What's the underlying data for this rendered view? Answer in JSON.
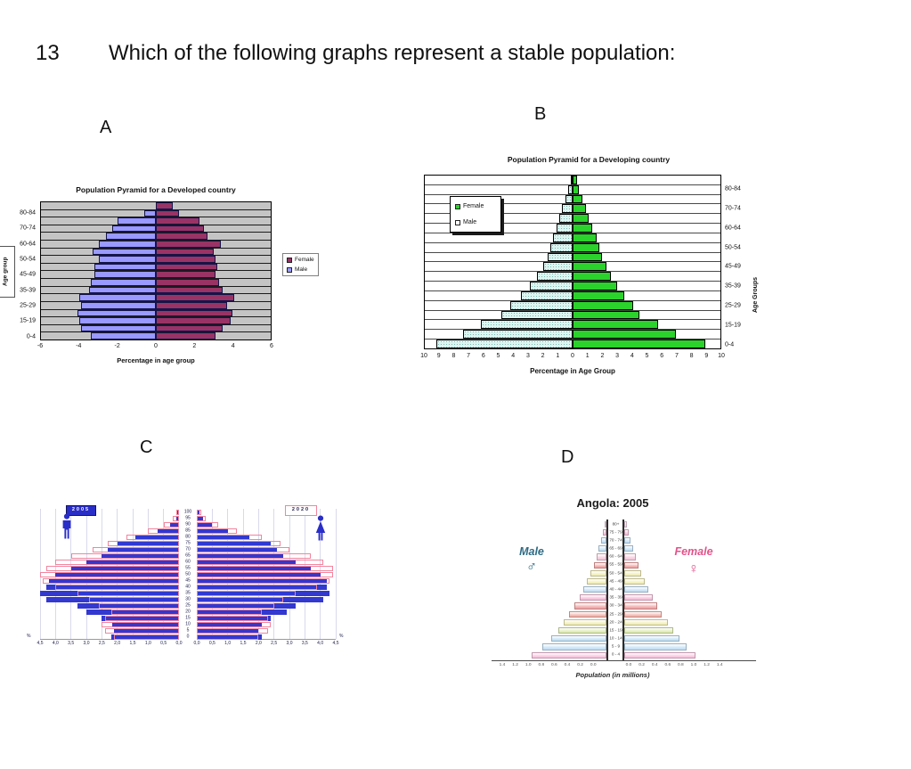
{
  "question": {
    "number": "13",
    "text": "Which of the following graphs represent a stable population:"
  },
  "option_labels": [
    "A",
    "B",
    "C",
    "D"
  ],
  "chart_data": [
    {
      "id": "A",
      "type": "bar",
      "subtype": "population-pyramid",
      "title": "Population Pyramid for a Developed country",
      "xlabel": "Percentage in age group",
      "ylabel": "Age group",
      "legend": [
        {
          "label": "Female",
          "color": "#993366"
        },
        {
          "label": "Male",
          "color": "#9999FF"
        }
      ],
      "x_ticks": [
        "-6",
        "-4",
        "-2",
        "0",
        "2",
        "4",
        "6"
      ],
      "age_labels": [
        "80-84",
        "70-74",
        "60-64",
        "50-54",
        "45-49",
        "35-39",
        "25-29",
        "15-19",
        "0-4"
      ],
      "xlim": 6,
      "rows_order": "top-to-bottom",
      "series": [
        {
          "name": "Male",
          "values": [
            0,
            0.6,
            2.0,
            2.3,
            2.6,
            3.0,
            3.3,
            3.0,
            3.2,
            3.2,
            3.4,
            3.5,
            4.0,
            3.9,
            4.1,
            4.0,
            3.9,
            3.4
          ]
        },
        {
          "name": "Female",
          "values": [
            0.9,
            1.2,
            2.3,
            2.5,
            2.7,
            3.4,
            3.0,
            3.1,
            3.2,
            3.1,
            3.3,
            3.5,
            4.1,
            3.7,
            4.0,
            3.9,
            3.5,
            3.1
          ]
        }
      ],
      "colors": {
        "male": "#9999FF",
        "female": "#993366",
        "plot_bg": "#C4C4C4"
      }
    },
    {
      "id": "B",
      "type": "bar",
      "subtype": "population-pyramid",
      "title": "Population Pyramid for a Developing country",
      "xlabel": "Percentage in Age Group",
      "ylabel": "Age Groups",
      "legend": [
        {
          "label": "Female",
          "color": "#2BD22B"
        },
        {
          "label": "Male",
          "color": "#FFFFFF"
        }
      ],
      "x_ticks": [
        "10",
        "9",
        "8",
        "7",
        "6",
        "5",
        "4",
        "3",
        "2",
        "1",
        "0",
        "1",
        "2",
        "3",
        "4",
        "5",
        "6",
        "7",
        "8",
        "9",
        "10"
      ],
      "age_labels": [
        "80-84",
        "70-74",
        "60-64",
        "50-54",
        "45-49",
        "35-39",
        "25-29",
        "15-19",
        "0-4"
      ],
      "xlim": 10,
      "rows_order": "top-to-bottom",
      "series": [
        {
          "name": "Male",
          "values": [
            0.15,
            0.3,
            0.5,
            0.7,
            0.9,
            1.1,
            1.3,
            1.5,
            1.7,
            2.0,
            2.4,
            2.9,
            3.5,
            4.2,
            4.8,
            6.2,
            7.4,
            9.2
          ]
        },
        {
          "name": "Female",
          "values": [
            0.3,
            0.45,
            0.65,
            0.9,
            1.1,
            1.3,
            1.6,
            1.8,
            2.0,
            2.3,
            2.6,
            3.0,
            3.5,
            4.1,
            4.5,
            5.8,
            7.0,
            9.0
          ]
        }
      ],
      "colors": {
        "male": "#DCF5F1",
        "female": "#2BD22B",
        "plot_bg": "#FFFFFF"
      }
    },
    {
      "id": "C",
      "type": "bar",
      "subtype": "population-pyramid-overlay",
      "year_boxes": {
        "left": "2005",
        "right": "2020"
      },
      "percent_symbol": "%",
      "age_ticks": [
        "100",
        "95",
        "90",
        "85",
        "80",
        "75",
        "70",
        "65",
        "60",
        "55",
        "50",
        "45",
        "40",
        "35",
        "30",
        "25",
        "20",
        "15",
        "10",
        "5",
        "0"
      ],
      "x_ticks_left": [
        "4,5",
        "4,0",
        "3,5",
        "3,0",
        "2,5",
        "2,0",
        "1,5",
        "1,0",
        "0,5",
        "0,0"
      ],
      "x_ticks_right": [
        "0,0",
        "0,5",
        "1,0",
        "1,5",
        "2,0",
        "2,5",
        "3,0",
        "3,5",
        "4,0",
        "4,5"
      ],
      "xlim": 4.5,
      "rows_order": "top-to-bottom (age 100 to 0)",
      "series": [
        {
          "name": "Male 2005",
          "values": [
            0.05,
            0.1,
            0.3,
            0.7,
            1.4,
            2.0,
            2.3,
            2.5,
            3.0,
            3.5,
            4.0,
            4.2,
            4.3,
            4.5,
            4.3,
            3.3,
            3.0,
            2.5,
            2.15,
            2.1,
            2.2
          ]
        },
        {
          "name": "Male 2020",
          "values": [
            0.1,
            0.2,
            0.5,
            1.0,
            1.7,
            2.3,
            2.8,
            3.5,
            4.0,
            4.3,
            4.5,
            4.4,
            4.0,
            3.3,
            2.9,
            2.6,
            2.2,
            2.4,
            2.5,
            2.4,
            2.1
          ]
        },
        {
          "name": "Female 2005",
          "values": [
            0.1,
            0.2,
            0.5,
            1.0,
            1.7,
            2.4,
            2.6,
            2.8,
            3.2,
            3.7,
            4.0,
            4.2,
            4.2,
            4.3,
            4.1,
            3.2,
            2.9,
            2.4,
            2.1,
            2.0,
            2.1
          ]
        },
        {
          "name": "Female 2020",
          "values": [
            0.15,
            0.3,
            0.7,
            1.3,
            2.1,
            2.7,
            3.0,
            3.7,
            4.1,
            4.4,
            4.4,
            4.3,
            3.9,
            3.2,
            2.8,
            2.5,
            2.1,
            2.3,
            2.4,
            2.3,
            2.0
          ]
        }
      ],
      "colors": {
        "bar_2005": "#3338CF",
        "outline_2020": "#F2849E"
      }
    },
    {
      "id": "D",
      "type": "bar",
      "subtype": "population-pyramid",
      "title": "Angola: 2005",
      "male_label": "Male",
      "female_label": "Female",
      "male_symbol": "♂",
      "female_symbol": "♀",
      "xlabel": "Population (in millions)",
      "age_labels": [
        "80+",
        "75 - 79",
        "70 - 74",
        "65 - 69",
        "60 - 64",
        "55 - 59",
        "50 - 54",
        "45 - 49",
        "40 - 44",
        "35 - 39",
        "30 - 34",
        "25 - 29",
        "20 - 24",
        "15 - 19",
        "10 - 14",
        "5 - 9",
        "0 - 4"
      ],
      "x_ticks_left": [
        "1.4",
        "1.2",
        "1.0",
        "0.8",
        "0.6",
        "0.4",
        "0.2",
        "0.0"
      ],
      "x_ticks_right": [
        "0.0",
        "0.2",
        "0.4",
        "0.6",
        "0.8",
        "1.0",
        "1.2",
        "1.4"
      ],
      "rows_order": "top-to-bottom",
      "series": [
        {
          "name": "Male",
          "values": [
            0.03,
            0.05,
            0.08,
            0.11,
            0.14,
            0.18,
            0.22,
            0.27,
            0.32,
            0.38,
            0.45,
            0.52,
            0.6,
            0.68,
            0.78,
            0.9,
            1.05
          ]
        },
        {
          "name": "Female",
          "values": [
            0.04,
            0.06,
            0.09,
            0.12,
            0.16,
            0.2,
            0.24,
            0.29,
            0.34,
            0.4,
            0.46,
            0.53,
            0.61,
            0.69,
            0.78,
            0.88,
            1.0
          ]
        }
      ],
      "row_colors": [
        "#f6dcea",
        "#f6c0da",
        "#c4e0f6",
        "#c4e0f6",
        "#f6cadc",
        "#f2a6a6",
        "#f2eeb6",
        "#f2eeb6",
        "#c4e0f6",
        "#f6c0da",
        "#f2a6a6",
        "#f4b2aa",
        "#f2eeb6",
        "#dfecb2",
        "#c4e0f6",
        "#c4e0f6",
        "#f8c2de"
      ],
      "colors": {
        "male_label": "#2E6B85",
        "female_label": "#E2538A"
      }
    }
  ]
}
